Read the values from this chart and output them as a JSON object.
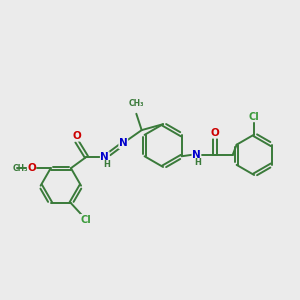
{
  "background_color": "#ebebeb",
  "bond_color": "#3a7a3a",
  "bond_width": 1.4,
  "atom_colors": {
    "O": "#cc0000",
    "N": "#0000cc",
    "Cl": "#3a9a3a",
    "C": "#3a7a3a",
    "H": "#3a7a3a"
  },
  "font_size": 7.0,
  "title": ""
}
